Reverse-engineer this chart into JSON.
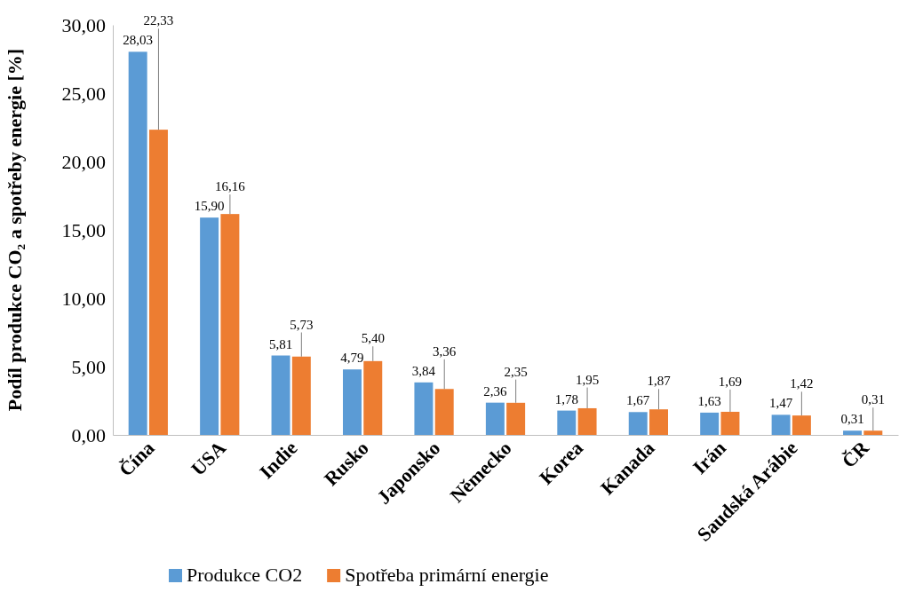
{
  "chart_data": {
    "type": "bar",
    "ylabel": "Podíl produkce CO₂ a spotřeby energie [%]",
    "categories": [
      "Čína",
      "USA",
      "Indie",
      "Rusko",
      "Japonsko",
      "Německo",
      "Korea",
      "Kanada",
      "Irán",
      "Saudská Arábie",
      "ČR"
    ],
    "series": [
      {
        "name": "Produkce CO2",
        "color": "#5b9bd5",
        "values": [
          28.03,
          15.9,
          5.81,
          4.79,
          3.84,
          2.36,
          1.78,
          1.67,
          1.63,
          1.47,
          0.31
        ],
        "value_labels": [
          "28,03",
          "15,90",
          "5,81",
          "4,79",
          "3,84",
          "2,36",
          "1,78",
          "1,67",
          "1,63",
          "1,47",
          "0,31"
        ]
      },
      {
        "name": "Spotřeba primární energie",
        "color": "#ed7d31",
        "values": [
          22.33,
          16.16,
          5.73,
          5.4,
          3.36,
          2.35,
          1.95,
          1.87,
          1.69,
          1.42,
          0.31
        ],
        "value_labels": [
          "22,33",
          "16,16",
          "5,73",
          "5,40",
          "3,36",
          "2,35",
          "1,95",
          "1,87",
          "1,69",
          "1,42",
          "0,31"
        ]
      }
    ],
    "ylim": [
      0,
      30
    ],
    "yticks": [
      {
        "value": 0,
        "label": "0,00"
      },
      {
        "value": 5,
        "label": "5,00"
      },
      {
        "value": 10,
        "label": "10,00"
      },
      {
        "value": 15,
        "label": "15,00"
      },
      {
        "value": 20,
        "label": "20,00"
      },
      {
        "value": 25,
        "label": "25,00"
      },
      {
        "value": 30,
        "label": "30,00"
      }
    ],
    "grid": false,
    "legend": "bottom"
  }
}
